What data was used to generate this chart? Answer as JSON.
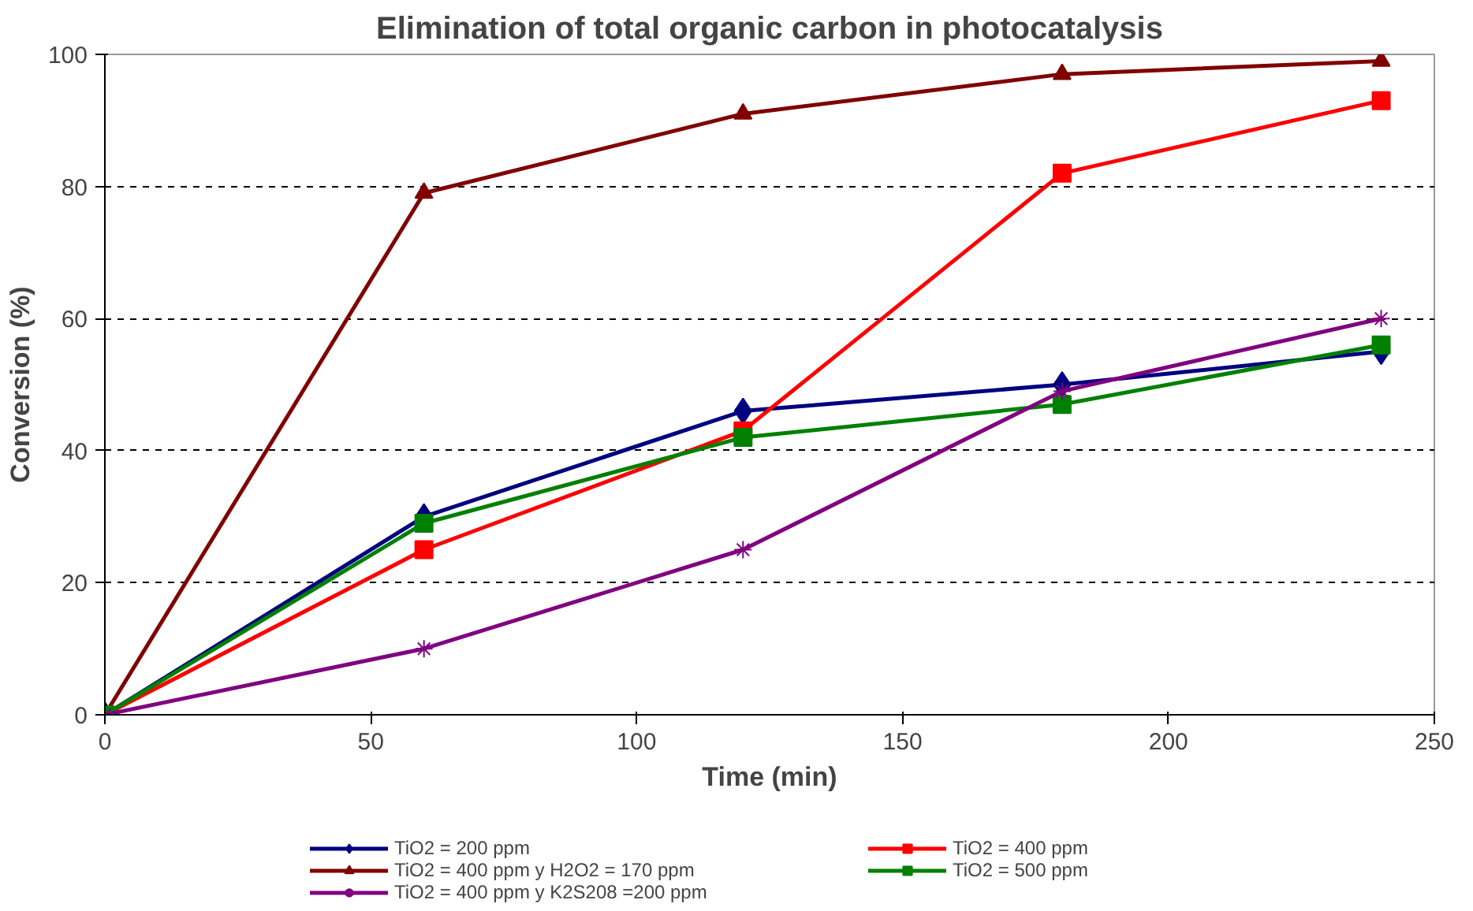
{
  "chart_data": {
    "type": "line",
    "title": "Elimination of total organic carbon in photocatalysis",
    "xlabel": "Time (min)",
    "ylabel": "Conversion (%)",
    "x": [
      0,
      60,
      120,
      180,
      240
    ],
    "series": [
      {
        "name": "TiO2 = 200 ppm",
        "color": "#000080",
        "marker": "diamond",
        "values": [
          0,
          30,
          46,
          50,
          55
        ]
      },
      {
        "name": "TiO2 = 400 ppm",
        "color": "#ff0000",
        "marker": "square",
        "values": [
          0,
          25,
          43,
          82,
          93
        ]
      },
      {
        "name": "TiO2 = 400 ppm y H2O2 = 170 ppm",
        "color": "#800000",
        "marker": "triangle",
        "values": [
          0,
          79,
          91,
          97,
          99
        ]
      },
      {
        "name": "TiO2 = 500 ppm",
        "color": "#008000",
        "marker": "square",
        "values": [
          0,
          29,
          42,
          47,
          56
        ]
      },
      {
        "name": "TiO2 = 400 ppm y K2S208 =200 ppm",
        "color": "#800080",
        "marker": "cross",
        "values": [
          0,
          10,
          25,
          49,
          60
        ]
      }
    ],
    "xlim": [
      0,
      250
    ],
    "xticks": [
      0,
      50,
      100,
      150,
      200,
      250
    ],
    "ylim": [
      0,
      100
    ],
    "yticks": [
      0,
      20,
      40,
      60,
      80,
      100
    ],
    "grid": "y",
    "line_style": "solid",
    "legend": "bottom"
  }
}
